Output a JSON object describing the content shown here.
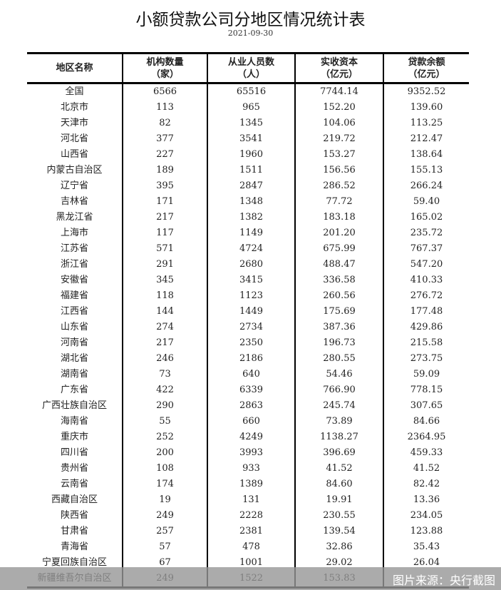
{
  "title": "小额贷款公司分地区情况统计表",
  "date": "2021-09-30",
  "headers": [
    "地区名称",
    "机构数量\n（家）",
    "从业人员数\n（人）",
    "实收资本\n（亿元）",
    "贷款余额\n（亿元）"
  ],
  "rows": [
    [
      "全国",
      "6566",
      "65516",
      "7744.14",
      "9352.52"
    ],
    [
      "北京市",
      "113",
      "965",
      "152.20",
      "139.60"
    ],
    [
      "天津市",
      "82",
      "1345",
      "104.06",
      "113.25"
    ],
    [
      "河北省",
      "377",
      "3541",
      "219.72",
      "212.47"
    ],
    [
      "山西省",
      "227",
      "1960",
      "153.27",
      "138.64"
    ],
    [
      "内蒙古自治区",
      "189",
      "1511",
      "156.56",
      "155.13"
    ],
    [
      "辽宁省",
      "395",
      "2847",
      "286.52",
      "266.24"
    ],
    [
      "吉林省",
      "171",
      "1348",
      "77.72",
      "59.40"
    ],
    [
      "黑龙江省",
      "217",
      "1382",
      "183.18",
      "165.02"
    ],
    [
      "上海市",
      "117",
      "1149",
      "201.20",
      "235.72"
    ],
    [
      "江苏省",
      "571",
      "4724",
      "675.99",
      "767.37"
    ],
    [
      "浙江省",
      "291",
      "2680",
      "488.47",
      "547.20"
    ],
    [
      "安徽省",
      "345",
      "3415",
      "336.58",
      "410.33"
    ],
    [
      "福建省",
      "118",
      "1123",
      "260.56",
      "276.72"
    ],
    [
      "江西省",
      "144",
      "1449",
      "175.69",
      "177.48"
    ],
    [
      "山东省",
      "274",
      "2734",
      "387.36",
      "429.86"
    ],
    [
      "河南省",
      "217",
      "2350",
      "196.73",
      "215.58"
    ],
    [
      "湖北省",
      "246",
      "2186",
      "280.55",
      "273.75"
    ],
    [
      "湖南省",
      "73",
      "640",
      "54.46",
      "59.09"
    ],
    [
      "广东省",
      "422",
      "6339",
      "766.90",
      "778.15"
    ],
    [
      "广西壮族自治区",
      "290",
      "2863",
      "245.74",
      "307.65"
    ],
    [
      "海南省",
      "55",
      "660",
      "73.89",
      "84.66"
    ],
    [
      "重庆市",
      "252",
      "4249",
      "1138.27",
      "2364.95"
    ],
    [
      "四川省",
      "200",
      "3993",
      "396.69",
      "459.33"
    ],
    [
      "贵州省",
      "108",
      "933",
      "41.52",
      "41.52"
    ],
    [
      "云南省",
      "174",
      "1389",
      "84.60",
      "82.42"
    ],
    [
      "西藏自治区",
      "19",
      "131",
      "19.91",
      "13.36"
    ],
    [
      "陕西省",
      "249",
      "2228",
      "230.55",
      "234.05"
    ],
    [
      "甘肃省",
      "257",
      "2381",
      "139.54",
      "123.88"
    ],
    [
      "青海省",
      "57",
      "478",
      "32.86",
      "35.43"
    ],
    [
      "宁夏回族自治区",
      "67",
      "1001",
      "29.02",
      "26.04"
    ],
    [
      "新疆维吾尔自治区",
      "249",
      "1522",
      "153.83",
      ""
    ]
  ],
  "watermark": "图片来源：央行截图"
}
